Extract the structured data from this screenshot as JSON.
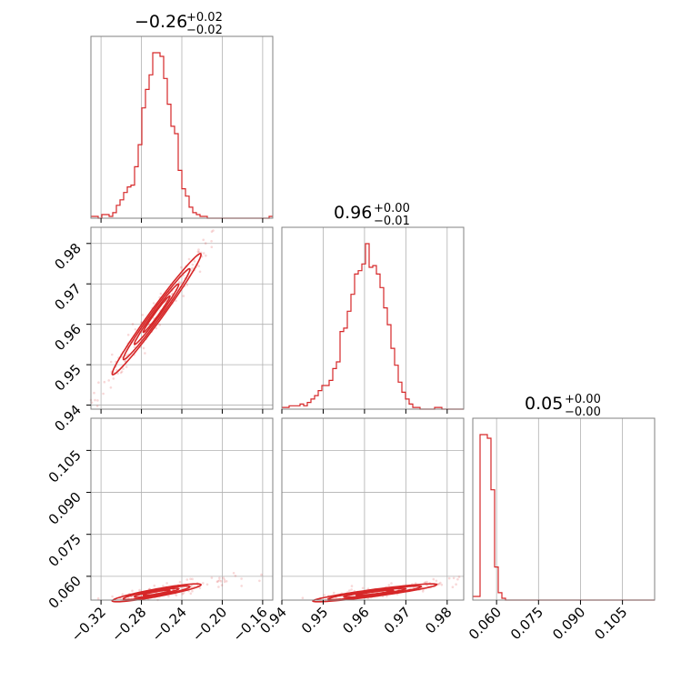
{
  "chart_data": {
    "type": "corner",
    "color": "#d62728",
    "grid": true,
    "panels": [
      {
        "id": "hist-p0",
        "kind": "histogram",
        "param_index": 0,
        "title": {
          "median": "−0.26",
          "upper": "+0.02",
          "lower": "−0.02"
        },
        "xlim": [
          -0.33,
          -0.15
        ],
        "bins": {
          "start": -0.33,
          "width": 0.0036,
          "counts": [
            1,
            1,
            0,
            2,
            2,
            1,
            3,
            7,
            10,
            14,
            17,
            18,
            28,
            40,
            60,
            70,
            78,
            90,
            90,
            88,
            76,
            62,
            50,
            46,
            26,
            16,
            12,
            6,
            3,
            2,
            1,
            1,
            0,
            0,
            0,
            0,
            0,
            0,
            0,
            0,
            0,
            0,
            0,
            0,
            0,
            0,
            0,
            0,
            0,
            1
          ]
        }
      },
      {
        "id": "hist-p1",
        "kind": "histogram",
        "param_index": 1,
        "title": {
          "median": "0.96",
          "upper": "+0.00",
          "lower": "−0.01"
        },
        "xlim": [
          0.94,
          0.984
        ],
        "bins": {
          "start": 0.94,
          "width": 0.00088,
          "counts": [
            1,
            1,
            2,
            2,
            2,
            3,
            2,
            4,
            6,
            8,
            11,
            14,
            14,
            17,
            24,
            28,
            46,
            48,
            58,
            68,
            80,
            82,
            86,
            98,
            84,
            85,
            80,
            72,
            60,
            50,
            36,
            26,
            16,
            10,
            6,
            3,
            1,
            1,
            0,
            0,
            0,
            0,
            1,
            1,
            0,
            0,
            0,
            0,
            0,
            0
          ]
        }
      },
      {
        "id": "hist-p2",
        "kind": "histogram",
        "param_index": 2,
        "title": {
          "median": "0.05",
          "upper": "+0.00",
          "lower": "−0.00"
        },
        "xlim": [
          0.0515,
          0.1165
        ],
        "bins": {
          "start": 0.0515,
          "width": 0.0013,
          "counts": [
            2,
            2,
            90,
            90,
            88,
            60,
            18,
            4,
            1,
            0,
            0,
            0,
            0,
            0,
            0,
            0,
            0,
            0,
            0,
            0,
            0,
            0,
            0,
            0,
            0,
            0,
            0,
            0,
            0,
            0,
            0,
            0,
            0,
            0,
            0,
            0,
            0,
            0,
            0,
            0,
            0,
            0,
            0,
            0,
            0,
            0,
            0,
            0,
            0,
            0
          ]
        }
      },
      {
        "id": "pair-p0-p1",
        "kind": "contour",
        "x_param": 0,
        "y_param": 1,
        "xlim": [
          -0.33,
          -0.15
        ],
        "ylim": [
          0.939,
          0.984
        ],
        "center": [
          -0.265,
          0.9625
        ],
        "spread": [
          0.022,
          0.0075
        ],
        "correlation": 0.985
      },
      {
        "id": "pair-p0-p2",
        "kind": "contour",
        "x_param": 0,
        "y_param": 2,
        "xlim": [
          -0.33,
          -0.15
        ],
        "ylim": [
          0.0515,
          0.1165
        ],
        "center": [
          -0.265,
          0.0541
        ],
        "spread": [
          0.022,
          0.0016
        ],
        "correlation": 0.9
      },
      {
        "id": "pair-p1-p2",
        "kind": "contour",
        "x_param": 1,
        "y_param": 2,
        "xlim": [
          0.94,
          0.984
        ],
        "ylim": [
          0.0515,
          0.1165
        ],
        "center": [
          0.9625,
          0.0541
        ],
        "spread": [
          0.0075,
          0.0016
        ],
        "correlation": 0.92
      }
    ],
    "x_ticks": {
      "p0": [
        "−0.32",
        "−0.28",
        "−0.24",
        "−0.20",
        "−0.16"
      ],
      "p1": [
        "0.94",
        "0.95",
        "0.96",
        "0.97",
        "0.98"
      ],
      "p2": [
        "0.060",
        "0.075",
        "0.090",
        "0.105"
      ]
    },
    "y_ticks": {
      "p1": [
        "0.94",
        "0.95",
        "0.96",
        "0.97",
        "0.98"
      ],
      "p2": [
        "0.060",
        "0.075",
        "0.090",
        "0.105"
      ]
    }
  }
}
